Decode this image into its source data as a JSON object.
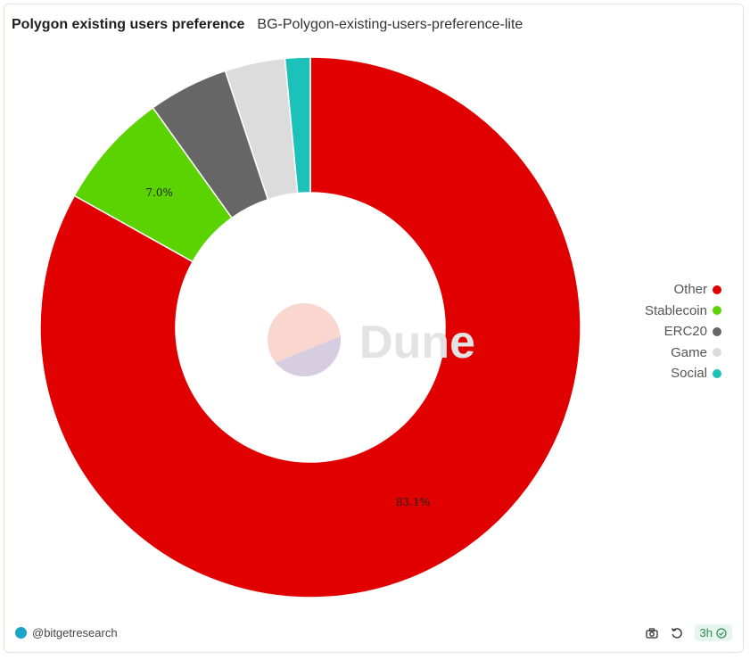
{
  "header": {
    "title": "Polygon existing users preference",
    "subtitle": "BG-Polygon-existing-users-preference-lite"
  },
  "watermark": {
    "text": "Dune",
    "colors": [
      "#f7c9bd",
      "#c9cbe6"
    ]
  },
  "footer": {
    "author": "@bitgetresearch",
    "refresh_label": "3h",
    "icons": [
      "camera-icon",
      "refresh-icon",
      "check-circle-icon"
    ]
  },
  "chart_data": {
    "type": "pie",
    "donut": true,
    "legend_position": "right",
    "categories": [
      "Other",
      "Stablecoin",
      "ERC20",
      "Game",
      "Social"
    ],
    "values": [
      83.1,
      7.0,
      4.8,
      3.6,
      1.5
    ],
    "colors": [
      "#e00000",
      "#5bd300",
      "#666666",
      "#dcdcdc",
      "#1cc2b9"
    ],
    "data_labels": [
      "83.1%",
      "7.0%",
      "",
      "",
      ""
    ],
    "start_angle_deg": 0,
    "direction": "clockwise"
  }
}
